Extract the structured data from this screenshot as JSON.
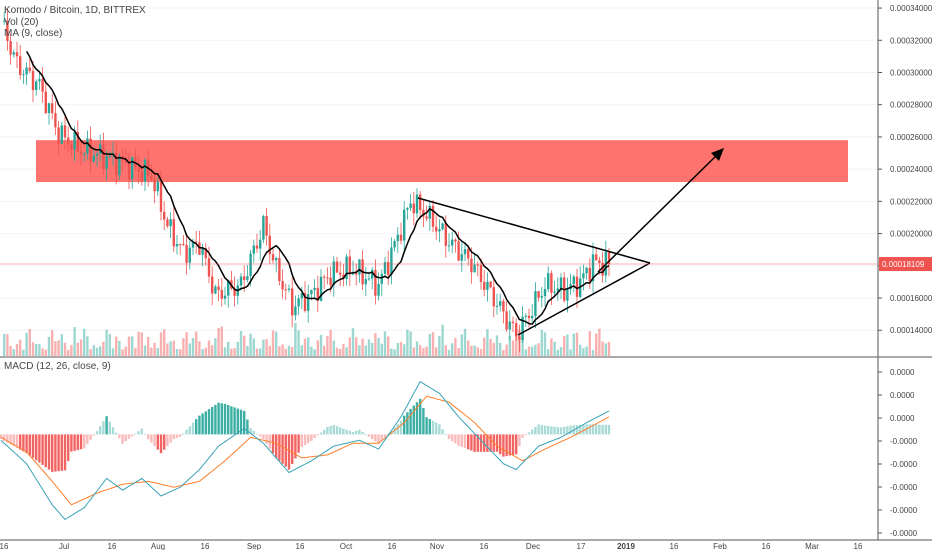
{
  "header": {
    "symbol": "Komodo / Bitcoin, 1D, BITTREX",
    "vol_label": "Vol (20)",
    "ma_label": "MA (9, close)",
    "macd_label": "MACD (12, 26, close, 9)"
  },
  "colors": {
    "up": "#26a69a",
    "down": "#ef5350",
    "zone": "#ff5a55",
    "ma": "#000000",
    "macd_line": "#3aa3b8",
    "signal_line": "#ff7f2a",
    "last_price_badge": "#ef5350"
  },
  "chart_data": [
    {
      "type": "candlestick",
      "title": "Komodo / Bitcoin, 1D, BITTREX",
      "price_axis_ticks": [
        "0.00034000",
        "0.00032000",
        "0.00030000",
        "0.00028000",
        "0.00026000",
        "0.00024000",
        "0.00022000",
        "0.00020000",
        "0.00018000",
        "0.00016000",
        "0.00014000"
      ],
      "ylim": [
        0.000124,
        0.000345
      ],
      "last_price": "0.00018109",
      "x_ticks": [
        "16",
        "Jul",
        "16",
        "Aug",
        "16",
        "Sep",
        "16",
        "Oct",
        "16",
        "Nov",
        "16",
        "Dec",
        "17",
        "2019",
        "16",
        "Feb",
        "16",
        "Mar",
        "16"
      ],
      "resistance_zone": {
        "from": 0.000232,
        "to": 0.000258
      },
      "annotations": [
        "descending triangle",
        "breakout arrow"
      ],
      "anchors": [
        {
          "day": 0,
          "price": 0.000332
        },
        {
          "day": 5,
          "price": 0.000305
        },
        {
          "day": 12,
          "price": 0.000292
        },
        {
          "day": 18,
          "price": 0.000262
        },
        {
          "day": 25,
          "price": 0.000252
        },
        {
          "day": 32,
          "price": 0.000248
        },
        {
          "day": 40,
          "price": 0.000242
        },
        {
          "day": 47,
          "price": 0.000236
        },
        {
          "day": 52,
          "price": 0.000205
        },
        {
          "day": 57,
          "price": 0.000188
        },
        {
          "day": 62,
          "price": 0.000194
        },
        {
          "day": 67,
          "price": 0.000162
        },
        {
          "day": 75,
          "price": 0.000168
        },
        {
          "day": 82,
          "price": 0.000205
        },
        {
          "day": 86,
          "price": 0.000178
        },
        {
          "day": 91,
          "price": 0.000155
        },
        {
          "day": 97,
          "price": 0.000162
        },
        {
          "day": 103,
          "price": 0.000175
        },
        {
          "day": 110,
          "price": 0.000178
        },
        {
          "day": 118,
          "price": 0.000168
        },
        {
          "day": 124,
          "price": 0.000198
        },
        {
          "day": 128,
          "price": 0.00022
        },
        {
          "day": 133,
          "price": 0.000212
        },
        {
          "day": 140,
          "price": 0.000195
        },
        {
          "day": 147,
          "price": 0.000182
        },
        {
          "day": 154,
          "price": 0.00016
        },
        {
          "day": 161,
          "price": 0.000137
        },
        {
          "day": 165,
          "price": 0.00015
        },
        {
          "day": 170,
          "price": 0.000168
        },
        {
          "day": 176,
          "price": 0.000165
        },
        {
          "day": 181,
          "price": 0.00017
        },
        {
          "day": 185,
          "price": 0.000182
        },
        {
          "day": 190,
          "price": 0.000181
        }
      ],
      "volume_max": 0.00018
    },
    {
      "type": "macd",
      "title": "MACD (12, 26, close, 9)",
      "axis_ticks": [
        "0.0000",
        "0.0000",
        "0.0000",
        "-0.0000",
        "-0.0000",
        "-0.0000",
        "-0.0000",
        "-0.0000"
      ],
      "macd": [
        [
          0,
          -0.2
        ],
        [
          8,
          -1.0
        ],
        [
          16,
          -2.4
        ],
        [
          20,
          -2.9
        ],
        [
          26,
          -2.5
        ],
        [
          33,
          -1.5
        ],
        [
          38,
          -1.9
        ],
        [
          44,
          -1.5
        ],
        [
          50,
          -2.1
        ],
        [
          56,
          -1.8
        ],
        [
          62,
          -1.2
        ],
        [
          68,
          -0.4
        ],
        [
          76,
          0.2
        ],
        [
          82,
          -0.3
        ],
        [
          90,
          -1.3
        ],
        [
          97,
          -0.9
        ],
        [
          104,
          -0.4
        ],
        [
          112,
          -0.2
        ],
        [
          118,
          -0.5
        ],
        [
          125,
          0.6
        ],
        [
          131,
          1.8
        ],
        [
          137,
          1.4
        ],
        [
          143,
          0.6
        ],
        [
          150,
          -0.2
        ],
        [
          157,
          -1.0
        ],
        [
          161,
          -1.2
        ],
        [
          168,
          -0.4
        ],
        [
          175,
          -0.1
        ],
        [
          183,
          0.4
        ],
        [
          190,
          0.8
        ]
      ],
      "signal": [
        [
          0,
          -0.1
        ],
        [
          8,
          -0.6
        ],
        [
          16,
          -1.6
        ],
        [
          22,
          -2.4
        ],
        [
          30,
          -2.0
        ],
        [
          38,
          -1.7
        ],
        [
          46,
          -1.6
        ],
        [
          54,
          -1.8
        ],
        [
          62,
          -1.6
        ],
        [
          70,
          -0.9
        ],
        [
          78,
          -0.1
        ],
        [
          86,
          -0.3
        ],
        [
          94,
          -0.8
        ],
        [
          102,
          -0.7
        ],
        [
          110,
          -0.3
        ],
        [
          118,
          -0.3
        ],
        [
          126,
          0.4
        ],
        [
          133,
          1.3
        ],
        [
          140,
          1.1
        ],
        [
          148,
          0.4
        ],
        [
          155,
          -0.4
        ],
        [
          163,
          -0.9
        ],
        [
          170,
          -0.5
        ],
        [
          178,
          -0.1
        ],
        [
          185,
          0.3
        ],
        [
          190,
          0.6
        ]
      ]
    }
  ]
}
